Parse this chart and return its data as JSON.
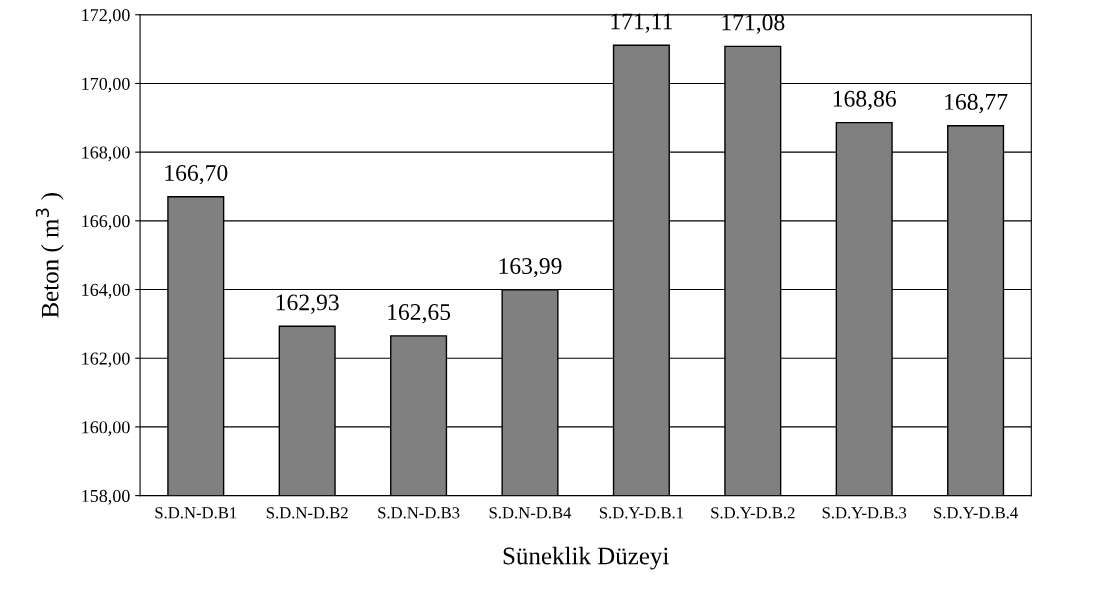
{
  "chart_data": {
    "type": "bar",
    "xlabel": "Süneklik Düzeyi",
    "ylabel": "Beton ( m$^{3}$ )",
    "categories": [
      "S.D.N-D.B1",
      "S.D.N-D.B2",
      "S.D.N-D.B3",
      "S.D.N-D.B4",
      "S.D.Y-D.B.1",
      "S.D.Y-D.B.2",
      "S.D.Y-D.B.3",
      "S.D.Y-D.B.4"
    ],
    "values": [
      166.7,
      162.93,
      162.65,
      163.99,
      171.11,
      171.08,
      168.86,
      168.77
    ],
    "value_labels": [
      "166,70",
      "162,93",
      "162,65",
      "163,99",
      "171,11",
      "171,08",
      "168,86",
      "168,77"
    ],
    "color": "#808080",
    "ylim": [
      158,
      172
    ],
    "yticks": [
      {
        "value": 158,
        "label": "158,00"
      },
      {
        "value": 160,
        "label": "160,00"
      },
      {
        "value": 162,
        "label": "162,00"
      },
      {
        "value": 164,
        "label": "164,00"
      },
      {
        "value": 166,
        "label": "166,00"
      },
      {
        "value": 168,
        "label": "168,00"
      },
      {
        "value": 170,
        "label": "170,00"
      },
      {
        "value": 172,
        "label": "172,00"
      }
    ],
    "grid": "y",
    "legend": false
  }
}
